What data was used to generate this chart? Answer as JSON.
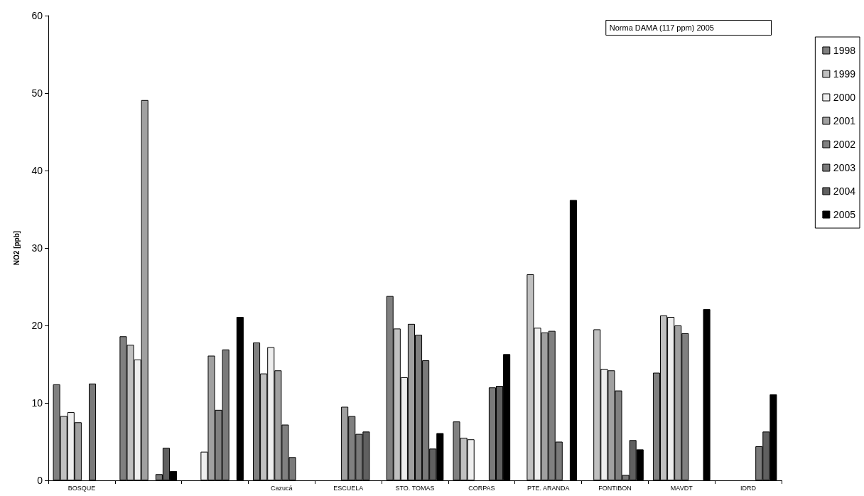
{
  "chart_data": {
    "type": "bar",
    "ylabel": "NO2 [ppb]",
    "categories": [
      "BOSQUE",
      null,
      null,
      "Cazucá",
      "ESCUELA",
      "STO. TOMAS",
      "CORPAS",
      "PTE. ARANDA",
      "FONTIBON",
      "MAVDT",
      "IDRD"
    ],
    "series": [
      {
        "name": "1998",
        "color": "#808080",
        "values": [
          12.4,
          18.6,
          null,
          17.8,
          null,
          23.8,
          7.6,
          null,
          null,
          13.9,
          null
        ]
      },
      {
        "name": "1999",
        "color": "#c0c0c0",
        "values": [
          8.3,
          17.5,
          null,
          13.8,
          null,
          19.6,
          5.5,
          26.6,
          19.5,
          21.3,
          null
        ]
      },
      {
        "name": "2000",
        "color": "#eeeeee",
        "values": [
          8.8,
          15.6,
          3.7,
          17.2,
          null,
          13.3,
          5.3,
          19.7,
          14.4,
          21.1,
          null
        ]
      },
      {
        "name": "2001",
        "color": "#a0a0a0",
        "values": [
          7.5,
          49.1,
          16.1,
          14.2,
          9.5,
          20.2,
          null,
          19.1,
          14.2,
          20.0,
          null
        ]
      },
      {
        "name": "2002",
        "color": "#808080",
        "values": [
          null,
          null,
          9.1,
          7.2,
          8.3,
          18.8,
          null,
          19.3,
          11.6,
          19.0,
          null
        ]
      },
      {
        "name": "2003",
        "color": "#7a7a7a",
        "values": [
          12.5,
          0.8,
          16.9,
          3.0,
          6.0,
          15.5,
          12.0,
          5.0,
          0.7,
          null,
          4.4
        ]
      },
      {
        "name": "2004",
        "color": "#606060",
        "values": [
          null,
          4.2,
          null,
          null,
          6.3,
          4.1,
          12.2,
          null,
          5.2,
          null,
          6.3
        ]
      },
      {
        "name": "2005",
        "color": "#000000",
        "values": [
          null,
          1.2,
          21.1,
          null,
          null,
          6.1,
          16.3,
          36.2,
          4.0,
          22.1,
          11.1
        ]
      }
    ],
    "ylim": [
      0,
      60
    ],
    "yticks": [
      0,
      10,
      20,
      30,
      40,
      50,
      60
    ],
    "grid": false,
    "legend": "right",
    "annotations": [
      "Norma DAMA (117 ppm) 2005"
    ]
  }
}
